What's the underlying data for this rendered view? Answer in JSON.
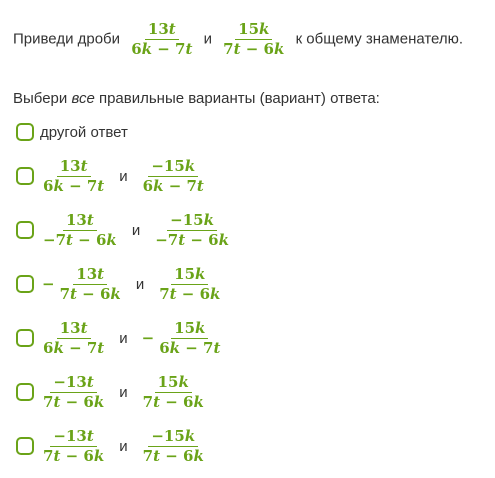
{
  "task": {
    "before": "Приведи дроби",
    "frac1": {
      "num": "13t",
      "den": "6k − 7t"
    },
    "and": "и",
    "frac2": {
      "num": "15k",
      "den": "7t − 6k"
    },
    "after": "к общему знаменателю."
  },
  "instruction": {
    "part1": "Выбери ",
    "emphasis": "все",
    "part2": " правильные варианты (вариант) ответа:"
  },
  "options": [
    {
      "label": "другой ответ"
    },
    {
      "a_sign": "",
      "a_num": "13t",
      "a_den": "6k − 7t",
      "conj": "и",
      "b_sign": "",
      "b_num": "−15k",
      "b_den": "6k − 7t"
    },
    {
      "a_sign": "",
      "a_num": "13t",
      "a_den": "−7t − 6k",
      "conj": "и",
      "b_sign": "",
      "b_num": "−15k",
      "b_den": "−7t − 6k"
    },
    {
      "a_sign": "−",
      "a_num": "13t",
      "a_den": "7t − 6k",
      "conj": "и",
      "b_sign": "",
      "b_num": "15k",
      "b_den": "7t − 6k"
    },
    {
      "a_sign": "",
      "a_num": "13t",
      "a_den": "6k − 7t",
      "conj": "и",
      "b_sign": "−",
      "b_num": "15k",
      "b_den": "6k − 7t"
    },
    {
      "a_sign": "",
      "a_num": "−13t",
      "a_den": "7t − 6k",
      "conj": "и",
      "b_sign": "",
      "b_num": "15k",
      "b_den": "7t − 6k"
    },
    {
      "a_sign": "",
      "a_num": "−13t",
      "a_den": "7t − 6k",
      "conj": "и",
      "b_sign": "",
      "b_num": "−15k",
      "b_den": "7t − 6k"
    }
  ],
  "colors": {
    "accent": "#6aa318",
    "text": "#333333"
  }
}
